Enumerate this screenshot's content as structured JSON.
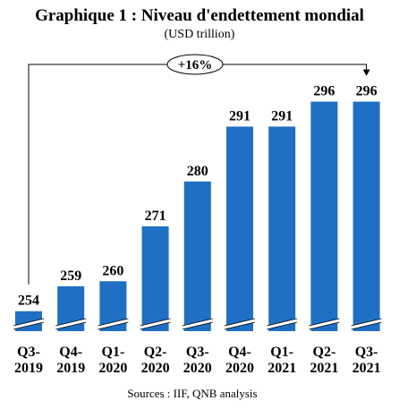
{
  "chart_data": {
    "type": "bar",
    "title": "Graphique 1 : Niveau d'endettement mondial",
    "subtitle": "(USD trillion)",
    "categories": [
      [
        "Q3-",
        "2019"
      ],
      [
        "Q4-",
        "2019"
      ],
      [
        "Q1-",
        "2020"
      ],
      [
        "Q2-",
        "2020"
      ],
      [
        "Q3-",
        "2020"
      ],
      [
        "Q4-",
        "2020"
      ],
      [
        "Q1-",
        "2021"
      ],
      [
        "Q2-",
        "2021"
      ],
      [
        "Q3-",
        "2021"
      ]
    ],
    "values": [
      254,
      259,
      260,
      271,
      280,
      291,
      291,
      296,
      296
    ],
    "data_labels": [
      "254",
      "259",
      "260",
      "271",
      "280",
      "291",
      "291",
      "296",
      "296"
    ],
    "ylim": [
      250,
      297
    ],
    "axis_break": true,
    "bar_color": "#1f6fc5",
    "grid": false,
    "annotation": {
      "text": "+16%",
      "from_index": 0,
      "to_index": 8
    },
    "source": "Sources : IIF, QNB analysis"
  }
}
